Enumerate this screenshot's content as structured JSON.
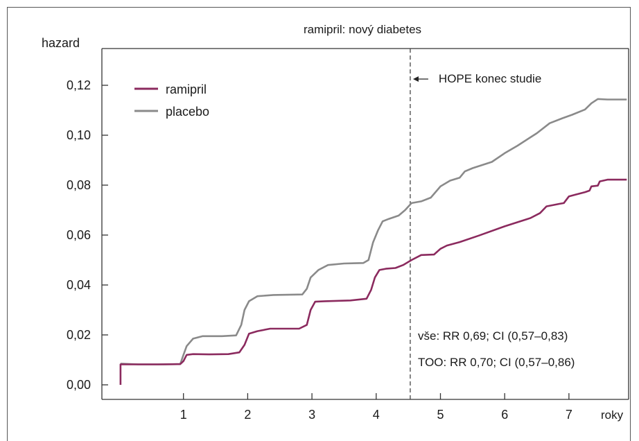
{
  "chart_data": {
    "type": "line",
    "title": "ramipril: nový diabetes",
    "ylabel": "hazard",
    "xlabel": "roky",
    "xlim": [
      0,
      7.9
    ],
    "ylim": [
      0,
      0.133
    ],
    "x_ticks": [
      1,
      2,
      3,
      4,
      5,
      6,
      7
    ],
    "x_tick_labels": [
      "1",
      "2",
      "3",
      "4",
      "5",
      "6",
      "7"
    ],
    "y_ticks": [
      0,
      0.02,
      0.04,
      0.06,
      0.08,
      0.1,
      0.12
    ],
    "y_tick_labels": [
      "0,00",
      "0,02",
      "0,04",
      "0,06",
      "0,08",
      "0,10",
      "0,12"
    ],
    "grid": false,
    "legend_position": "top-left",
    "colors": {
      "ramipril": "#8b2a5e",
      "placebo": "#8a8a8a"
    },
    "series": [
      {
        "name": "ramipril",
        "color": "#8b2a5e",
        "points": [
          [
            0.02,
            0.0
          ],
          [
            0.02,
            0.0082
          ],
          [
            0.3,
            0.0082
          ],
          [
            0.6,
            0.0082
          ],
          [
            0.95,
            0.0083
          ],
          [
            1.0,
            0.0095
          ],
          [
            1.05,
            0.012
          ],
          [
            1.15,
            0.0123
          ],
          [
            1.4,
            0.0122
          ],
          [
            1.7,
            0.0123
          ],
          [
            1.87,
            0.013
          ],
          [
            1.95,
            0.016
          ],
          [
            2.02,
            0.0205
          ],
          [
            2.15,
            0.0215
          ],
          [
            2.35,
            0.0225
          ],
          [
            2.8,
            0.0225
          ],
          [
            2.92,
            0.024
          ],
          [
            2.98,
            0.03
          ],
          [
            3.05,
            0.0333
          ],
          [
            3.2,
            0.0335
          ],
          [
            3.6,
            0.0338
          ],
          [
            3.85,
            0.0345
          ],
          [
            3.92,
            0.038
          ],
          [
            3.98,
            0.043
          ],
          [
            4.05,
            0.046
          ],
          [
            4.15,
            0.0465
          ],
          [
            4.3,
            0.0468
          ],
          [
            4.42,
            0.048
          ],
          [
            4.55,
            0.05
          ],
          [
            4.7,
            0.052
          ],
          [
            4.9,
            0.0522
          ],
          [
            5.0,
            0.0545
          ],
          [
            5.1,
            0.0558
          ],
          [
            5.3,
            0.0572
          ],
          [
            5.6,
            0.0598
          ],
          [
            6.0,
            0.0635
          ],
          [
            6.4,
            0.0668
          ],
          [
            6.55,
            0.0688
          ],
          [
            6.65,
            0.0715
          ],
          [
            6.85,
            0.0725
          ],
          [
            6.92,
            0.0728
          ],
          [
            7.0,
            0.0755
          ],
          [
            7.1,
            0.0762
          ],
          [
            7.25,
            0.0772
          ],
          [
            7.32,
            0.0778
          ],
          [
            7.35,
            0.0795
          ],
          [
            7.45,
            0.0798
          ],
          [
            7.48,
            0.0815
          ],
          [
            7.6,
            0.0822
          ],
          [
            7.9,
            0.0822
          ]
        ]
      },
      {
        "name": "placebo",
        "color": "#8a8a8a",
        "points": [
          [
            0.02,
            0.0085
          ],
          [
            0.3,
            0.0082
          ],
          [
            0.7,
            0.0082
          ],
          [
            0.95,
            0.0083
          ],
          [
            1.0,
            0.012
          ],
          [
            1.05,
            0.0155
          ],
          [
            1.15,
            0.0185
          ],
          [
            1.3,
            0.0195
          ],
          [
            1.6,
            0.0195
          ],
          [
            1.82,
            0.0198
          ],
          [
            1.9,
            0.024
          ],
          [
            1.95,
            0.03
          ],
          [
            2.02,
            0.0335
          ],
          [
            2.15,
            0.0355
          ],
          [
            2.4,
            0.036
          ],
          [
            2.85,
            0.0362
          ],
          [
            2.92,
            0.0385
          ],
          [
            2.98,
            0.043
          ],
          [
            3.1,
            0.046
          ],
          [
            3.25,
            0.048
          ],
          [
            3.5,
            0.0486
          ],
          [
            3.8,
            0.0488
          ],
          [
            3.88,
            0.05
          ],
          [
            3.95,
            0.057
          ],
          [
            4.03,
            0.062
          ],
          [
            4.1,
            0.0655
          ],
          [
            4.2,
            0.0665
          ],
          [
            4.35,
            0.0678
          ],
          [
            4.45,
            0.07
          ],
          [
            4.55,
            0.0728
          ],
          [
            4.7,
            0.0735
          ],
          [
            4.85,
            0.075
          ],
          [
            5.0,
            0.0795
          ],
          [
            5.15,
            0.0818
          ],
          [
            5.3,
            0.083
          ],
          [
            5.38,
            0.0855
          ],
          [
            5.5,
            0.0868
          ],
          [
            5.8,
            0.0893
          ],
          [
            6.0,
            0.0928
          ],
          [
            6.2,
            0.0958
          ],
          [
            6.5,
            0.1008
          ],
          [
            6.7,
            0.1048
          ],
          [
            6.9,
            0.1068
          ],
          [
            7.05,
            0.1082
          ],
          [
            7.25,
            0.1103
          ],
          [
            7.35,
            0.1128
          ],
          [
            7.45,
            0.1145
          ],
          [
            7.6,
            0.1143
          ],
          [
            7.9,
            0.1143
          ]
        ]
      }
    ],
    "vertical_line": {
      "x": 4.53,
      "label": "HOPE konec studie",
      "style": "dashed"
    },
    "annotations": [
      "vše: RR 0,69; CI (0,57–0,83)",
      "TOO: RR 0,70; CI (0,57–0,86)"
    ]
  }
}
